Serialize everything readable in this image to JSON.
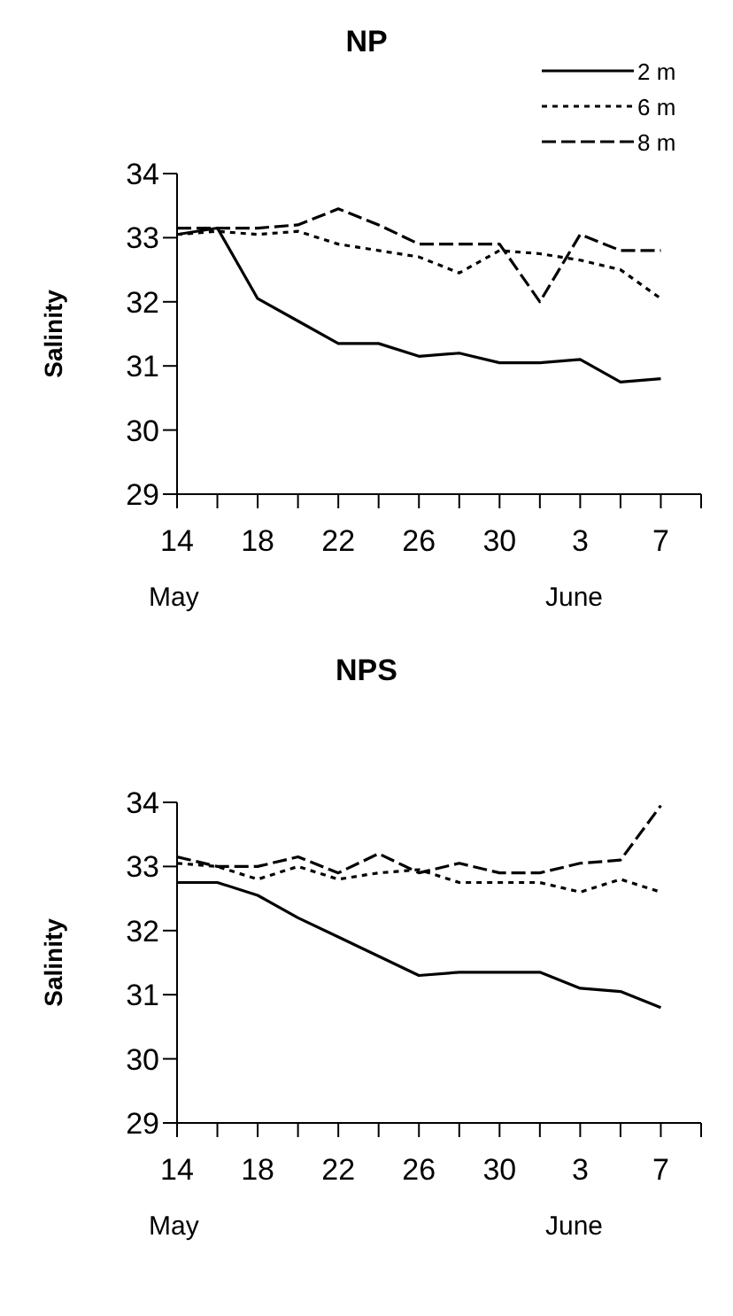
{
  "chart_data": [
    {
      "type": "line",
      "title": "NP",
      "ylabel": "Salinity",
      "annotations": [
        "May",
        "June"
      ],
      "x": [
        "--05-14",
        "--05-16",
        "--05-18",
        "--05-20",
        "--05-22",
        "--05-24",
        "--05-26",
        "--05-28",
        "--05-30",
        "--06-01",
        "--06-03",
        "--06-05",
        "--06-07"
      ],
      "series": [
        {
          "name": "2 m",
          "color": "#000000",
          "line_style": "solid",
          "values": [
            33.05,
            33.15,
            32.05,
            31.7,
            31.35,
            31.35,
            31.15,
            31.2,
            31.05,
            31.05,
            31.1,
            30.75,
            30.8
          ]
        },
        {
          "name": "6 m",
          "color": "#000000",
          "line_style": "dotted",
          "values": [
            33.05,
            33.1,
            33.05,
            33.1,
            32.9,
            32.8,
            32.7,
            32.45,
            32.8,
            32.75,
            32.65,
            32.5,
            32.05
          ]
        },
        {
          "name": "8 m",
          "color": "#000000",
          "line_style": "dashed",
          "values": [
            33.15,
            33.15,
            33.15,
            33.2,
            33.45,
            33.2,
            32.9,
            32.9,
            32.9,
            32.0,
            33.05,
            32.8,
            32.8
          ]
        }
      ],
      "xlim": [
        "--05-14",
        "--06-09"
      ],
      "xticks": [
        {
          "value": "--05-14",
          "label": "14"
        },
        {
          "value": "--05-16",
          "label": null
        },
        {
          "value": "--05-18",
          "label": "18"
        },
        {
          "value": "--05-20",
          "label": null
        },
        {
          "value": "--05-22",
          "label": "22"
        },
        {
          "value": "--05-24",
          "label": null
        },
        {
          "value": "--05-26",
          "label": "26"
        },
        {
          "value": "--05-28",
          "label": null
        },
        {
          "value": "--05-30",
          "label": "30"
        },
        {
          "value": "--06-01",
          "label": null
        },
        {
          "value": "--06-03",
          "label": "3"
        },
        {
          "value": "--06-05",
          "label": null
        },
        {
          "value": "--06-07",
          "label": "7"
        },
        {
          "value": "--06-09",
          "label": null
        }
      ],
      "ylim": [
        29,
        34
      ],
      "yticks": [
        29,
        30,
        31,
        32,
        33,
        34
      ],
      "grid": false,
      "legend": "top right",
      "marker": "none"
    },
    {
      "type": "line",
      "title": "NPS",
      "ylabel": "Salinity",
      "annotations": [
        "May",
        "June"
      ],
      "x": [
        "--05-14",
        "--05-16",
        "--05-18",
        "--05-20",
        "--05-22",
        "--05-24",
        "--05-26",
        "--05-28",
        "--05-30",
        "--06-01",
        "--06-03",
        "--06-05",
        "--06-07"
      ],
      "series": [
        {
          "color": "#000000",
          "line_style": "solid",
          "values": [
            32.75,
            32.75,
            32.55,
            32.2,
            31.9,
            31.6,
            31.3,
            31.35,
            31.35,
            31.35,
            31.1,
            31.05,
            30.8
          ]
        },
        {
          "color": "#000000",
          "line_style": "dotted",
          "values": [
            33.05,
            33.0,
            32.8,
            33.0,
            32.8,
            32.9,
            32.95,
            32.75,
            32.75,
            32.75,
            32.6,
            32.8,
            32.6
          ]
        },
        {
          "color": "#000000",
          "line_style": "dashed",
          "values": [
            33.15,
            33.0,
            33.0,
            33.15,
            32.9,
            33.2,
            32.9,
            33.05,
            32.9,
            32.9,
            33.05,
            33.1,
            33.95
          ]
        }
      ],
      "xlim": [
        "--05-14",
        "--06-09"
      ],
      "xticks": [
        {
          "value": "--05-14",
          "label": "14"
        },
        {
          "value": "--05-16",
          "label": null
        },
        {
          "value": "--05-18",
          "label": "18"
        },
        {
          "value": "--05-20",
          "label": null
        },
        {
          "value": "--05-22",
          "label": "22"
        },
        {
          "value": "--05-24",
          "label": null
        },
        {
          "value": "--05-26",
          "label": "26"
        },
        {
          "value": "--05-28",
          "label": null
        },
        {
          "value": "--05-30",
          "label": "30"
        },
        {
          "value": "--06-01",
          "label": null
        },
        {
          "value": "--06-03",
          "label": "3"
        },
        {
          "value": "--06-05",
          "label": null
        },
        {
          "value": "--06-07",
          "label": "7"
        },
        {
          "value": "--06-09",
          "label": null
        }
      ],
      "ylim": [
        29,
        34
      ],
      "yticks": [
        29,
        30,
        31,
        32,
        33,
        34
      ],
      "grid": false,
      "legend": false,
      "marker": "none"
    }
  ]
}
